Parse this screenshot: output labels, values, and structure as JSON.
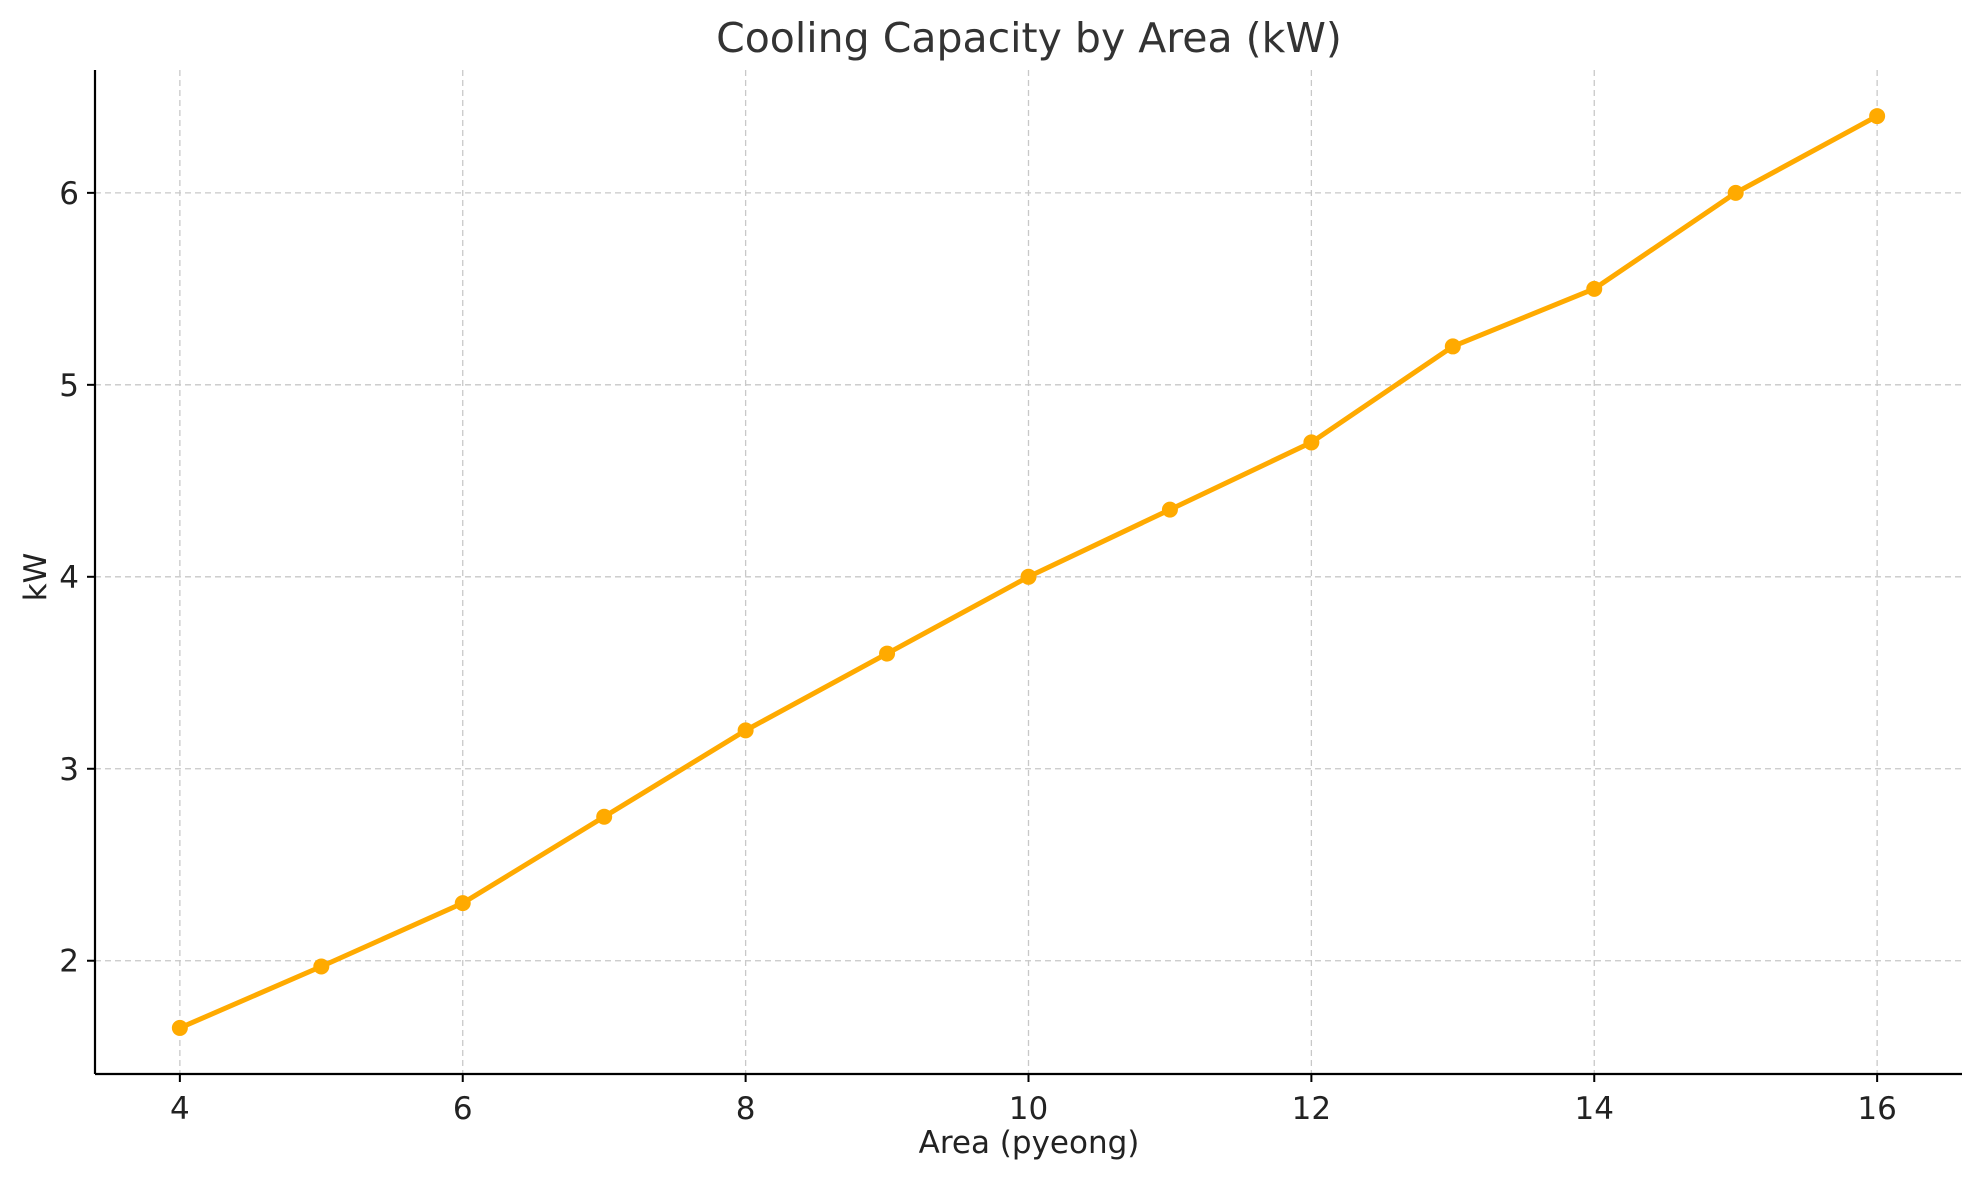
{
  "chart_data": {
    "type": "line",
    "title": "Cooling Capacity by Area (kW)",
    "xlabel": "Area (pyeong)",
    "ylabel": "kW",
    "x": [
      4,
      5,
      6,
      7,
      8,
      9,
      10,
      11,
      12,
      13,
      14,
      15,
      16
    ],
    "series": [
      {
        "values": [
          1.65,
          1.97,
          2.3,
          2.75,
          3.2,
          3.6,
          4.0,
          4.35,
          4.7,
          5.2,
          5.5,
          6.0,
          6.4
        ],
        "color": "#FFAA00"
      }
    ],
    "xlim": [
      3.4,
      16.6
    ],
    "ylim": [
      1.41,
      6.64
    ],
    "xticks": [
      4,
      6,
      8,
      10,
      12,
      14,
      16
    ],
    "yticks": [
      2,
      3,
      4,
      5,
      6
    ],
    "grid": true,
    "grid_style": "dashed"
  }
}
